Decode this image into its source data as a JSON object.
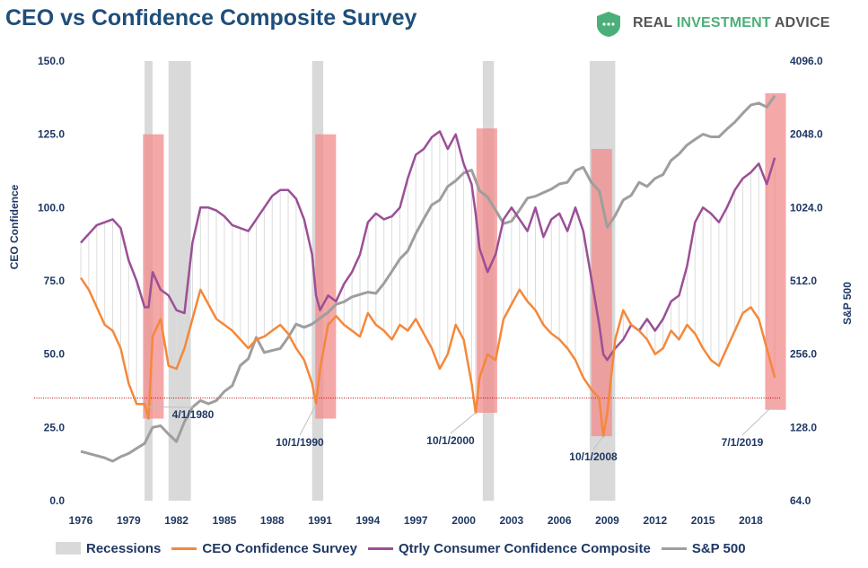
{
  "header": {
    "title": "CEO vs Confidence Composite Survey",
    "brand_real": "REAL",
    "brand_investment": "INVESTMENT",
    "brand_advice": "ADVICE"
  },
  "legend": {
    "recessions": "Recessions",
    "ceo": "CEO Confidence Survey",
    "consumer": "Qtrly Consumer Confidence Composite",
    "sp500": "S&P 500"
  },
  "chart_data": {
    "type": "line",
    "title": "CEO vs Confidence Composite Survey",
    "ylabel": "CEO Confidence",
    "y2label": "S&P 500",
    "ylim": [
      0,
      150
    ],
    "y2lim": [
      64,
      4096
    ],
    "y2scale": "log2",
    "xlim": [
      1976,
      2020
    ],
    "x_ticks": [
      "1976",
      "1979",
      "1982",
      "1985",
      "1988",
      "1991",
      "1994",
      "1997",
      "2000",
      "2003",
      "2006",
      "2009",
      "2012",
      "2015",
      "2018"
    ],
    "y_ticks": [
      "0.0",
      "25.0",
      "50.0",
      "75.0",
      "100.0",
      "125.0",
      "150.0"
    ],
    "y2_ticks": [
      "64.0",
      "128.0",
      "256.0",
      "512.0",
      "1024.0",
      "2048.0",
      "4096.0"
    ],
    "grid": false,
    "legend_position": "bottom",
    "colors": {
      "recession": "#d9d9d9",
      "ceo": "#f4883a",
      "consumer": "#9b4f96",
      "sp500": "#9e9e9e",
      "highlight": "#f28b8b",
      "reference": "#c00000"
    },
    "recessions": [
      [
        1980.0,
        1980.5
      ],
      [
        1981.5,
        1982.9
      ],
      [
        1990.5,
        1991.2
      ],
      [
        2001.2,
        2001.9
      ],
      [
        2007.9,
        2009.5
      ]
    ],
    "highlight_boxes": [
      {
        "x": [
          1979.9,
          1981.2
        ],
        "y": [
          28,
          125
        ]
      },
      {
        "x": [
          1990.7,
          1992.0
        ],
        "y": [
          28,
          125
        ]
      },
      {
        "x": [
          2000.8,
          2002.1
        ],
        "y": [
          30,
          127
        ]
      },
      {
        "x": [
          2008.0,
          2009.3
        ],
        "y": [
          22,
          120
        ]
      },
      {
        "x": [
          2018.9,
          2020.2
        ],
        "y": [
          31,
          139
        ]
      }
    ],
    "reference_line": 35.0,
    "annotations": [
      {
        "label": "4/1/1980",
        "x": 1980.25,
        "y": 32
      },
      {
        "label": "10/1/1990",
        "x": 1990.75,
        "y": 33
      },
      {
        "label": "10/1/2000",
        "x": 2000.75,
        "y": 30
      },
      {
        "label": "10/1/2008",
        "x": 2008.75,
        "y": 22
      },
      {
        "label": "7/1/2019",
        "x": 2019.5,
        "y": 33
      }
    ],
    "series": [
      {
        "name": "CEO Confidence Survey",
        "axis": "left",
        "x": [
          1976,
          1976.5,
          1977,
          1977.5,
          1978,
          1978.5,
          1979,
          1979.5,
          1980,
          1980.25,
          1980.5,
          1981,
          1981.5,
          1982,
          1982.5,
          1983,
          1983.5,
          1984,
          1984.5,
          1985,
          1985.5,
          1986,
          1986.5,
          1987,
          1987.5,
          1988,
          1988.5,
          1989,
          1989.5,
          1990,
          1990.5,
          1990.75,
          1991,
          1991.5,
          1992,
          1992.5,
          1993,
          1993.5,
          1994,
          1994.5,
          1995,
          1995.5,
          1996,
          1996.5,
          1997,
          1997.5,
          1998,
          1998.5,
          1999,
          1999.5,
          2000,
          2000.5,
          2000.75,
          2001,
          2001.5,
          2002,
          2002.5,
          2003,
          2003.5,
          2004,
          2004.5,
          2005,
          2005.5,
          2006,
          2006.5,
          2007,
          2007.5,
          2008,
          2008.5,
          2008.75,
          2009,
          2009.5,
          2010,
          2010.5,
          2011,
          2011.5,
          2012,
          2012.5,
          2013,
          2013.5,
          2014,
          2014.5,
          2015,
          2015.5,
          2016,
          2016.5,
          2017,
          2017.5,
          2018,
          2018.5,
          2019,
          2019.5
        ],
        "values": [
          76,
          72,
          66,
          60,
          58,
          52,
          40,
          33,
          33,
          28,
          56,
          62,
          46,
          45,
          52,
          62,
          72,
          67,
          62,
          60,
          58,
          55,
          52,
          55,
          56,
          58,
          60,
          57,
          52,
          48,
          40,
          33,
          45,
          60,
          63,
          60,
          58,
          56,
          64,
          60,
          58,
          55,
          60,
          58,
          62,
          57,
          52,
          45,
          50,
          60,
          55,
          40,
          30,
          42,
          50,
          48,
          62,
          67,
          72,
          68,
          65,
          60,
          57,
          55,
          52,
          48,
          42,
          38,
          35,
          22,
          30,
          55,
          65,
          60,
          58,
          55,
          50,
          52,
          58,
          55,
          60,
          57,
          52,
          48,
          46,
          52,
          58,
          64,
          66,
          62,
          52,
          42
        ]
      },
      {
        "name": "Qtrly Consumer Confidence Composite",
        "axis": "left",
        "x": [
          1976,
          1976.5,
          1977,
          1977.5,
          1978,
          1978.5,
          1979,
          1979.5,
          1980,
          1980.25,
          1980.5,
          1981,
          1981.5,
          1982,
          1982.5,
          1983,
          1983.5,
          1984,
          1984.5,
          1985,
          1985.5,
          1986,
          1986.5,
          1987,
          1987.5,
          1988,
          1988.5,
          1989,
          1989.5,
          1990,
          1990.5,
          1990.75,
          1991,
          1991.5,
          1992,
          1992.5,
          1993,
          1993.5,
          1994,
          1994.5,
          1995,
          1995.5,
          1996,
          1996.5,
          1997,
          1997.5,
          1998,
          1998.5,
          1999,
          1999.5,
          2000,
          2000.5,
          2000.75,
          2001,
          2001.5,
          2002,
          2002.5,
          2003,
          2003.5,
          2004,
          2004.5,
          2005,
          2005.5,
          2006,
          2006.5,
          2007,
          2007.5,
          2008,
          2008.5,
          2008.75,
          2009,
          2009.5,
          2010,
          2010.5,
          2011,
          2011.5,
          2012,
          2012.5,
          2013,
          2013.5,
          2014,
          2014.5,
          2015,
          2015.5,
          2016,
          2016.5,
          2017,
          2017.5,
          2018,
          2018.5,
          2019,
          2019.5
        ],
        "values": [
          88,
          91,
          94,
          95,
          96,
          93,
          82,
          75,
          66,
          66,
          78,
          72,
          70,
          65,
          64,
          88,
          100,
          100,
          99,
          97,
          94,
          93,
          92,
          96,
          100,
          104,
          106,
          106,
          103,
          96,
          84,
          70,
          65,
          70,
          68,
          74,
          78,
          84,
          95,
          98,
          96,
          97,
          100,
          110,
          118,
          120,
          124,
          126,
          120,
          125,
          115,
          108,
          98,
          86,
          78,
          84,
          96,
          100,
          96,
          92,
          100,
          90,
          96,
          98,
          92,
          100,
          92,
          76,
          60,
          50,
          48,
          52,
          55,
          60,
          58,
          62,
          58,
          62,
          68,
          70,
          80,
          95,
          100,
          98,
          95,
          100,
          106,
          110,
          112,
          115,
          108,
          117
        ]
      },
      {
        "name": "S&P 500",
        "axis": "right",
        "x": [
          1976,
          1976.5,
          1977,
          1977.5,
          1978,
          1978.5,
          1979,
          1979.5,
          1980,
          1980.5,
          1981,
          1981.5,
          1982,
          1982.5,
          1983,
          1983.5,
          1984,
          1984.5,
          1985,
          1985.5,
          1986,
          1986.5,
          1987,
          1987.5,
          1988,
          1988.5,
          1989,
          1989.5,
          1990,
          1990.5,
          1991,
          1991.5,
          1992,
          1992.5,
          1993,
          1993.5,
          1994,
          1994.5,
          1995,
          1995.5,
          1996,
          1996.5,
          1997,
          1997.5,
          1998,
          1998.5,
          1999,
          1999.5,
          2000,
          2000.5,
          2001,
          2001.5,
          2002,
          2002.5,
          2003,
          2003.5,
          2004,
          2004.5,
          2005,
          2005.5,
          2006,
          2006.5,
          2007,
          2007.5,
          2008,
          2008.5,
          2009,
          2009.5,
          2010,
          2010.5,
          2011,
          2011.5,
          2012,
          2012.5,
          2013,
          2013.5,
          2014,
          2014.5,
          2015,
          2015.5,
          2016,
          2016.5,
          2017,
          2017.5,
          2018,
          2018.5,
          2019,
          2019.5
        ],
        "values": [
          102,
          100,
          98,
          96,
          93,
          97,
          100,
          105,
          110,
          128,
          130,
          120,
          112,
          135,
          155,
          165,
          160,
          165,
          180,
          190,
          230,
          245,
          300,
          260,
          265,
          270,
          300,
          340,
          330,
          340,
          360,
          380,
          410,
          420,
          440,
          450,
          460,
          455,
          500,
          560,
          630,
          680,
          800,
          920,
          1050,
          1100,
          1250,
          1320,
          1420,
          1460,
          1200,
          1130,
          1000,
          880,
          900,
          1000,
          1120,
          1140,
          1180,
          1220,
          1280,
          1300,
          1450,
          1500,
          1300,
          1200,
          850,
          950,
          1100,
          1150,
          1300,
          1250,
          1350,
          1400,
          1600,
          1700,
          1850,
          1950,
          2050,
          2000,
          2000,
          2150,
          2300,
          2500,
          2700,
          2750,
          2650,
          2950
        ]
      }
    ]
  }
}
